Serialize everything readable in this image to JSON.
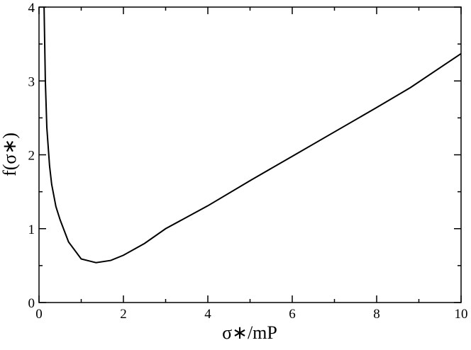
{
  "chart_data": {
    "type": "line",
    "x_label": "σ∗/mP",
    "y_label": "f(σ∗)",
    "x": [
      0.12,
      0.15,
      0.185,
      0.25,
      0.3,
      0.4,
      0.5,
      0.7,
      1.0,
      1.35,
      1.7,
      2.0,
      2.5,
      3,
      4,
      5,
      6,
      7,
      8,
      8.8,
      10
    ],
    "series": [
      {
        "color": "#000000",
        "values": [
          4.0,
          3.0,
          2.37,
          1.85,
          1.6,
          1.3,
          1.12,
          0.82,
          0.59,
          0.54,
          0.57,
          0.64,
          0.8,
          1.0,
          1.31,
          1.65,
          1.98,
          2.31,
          2.64,
          2.91,
          3.37
        ]
      }
    ],
    "xlim": [
      0,
      10
    ],
    "ylim": [
      0,
      4
    ],
    "xticks": [
      0,
      2,
      4,
      6,
      8,
      10
    ],
    "yticks": [
      0,
      1,
      2,
      3,
      4
    ],
    "xminor_ticks": [
      1,
      3,
      5,
      7,
      9
    ],
    "yminor_ticks": [
      0.5,
      1.5,
      2.5,
      3.5
    ]
  }
}
